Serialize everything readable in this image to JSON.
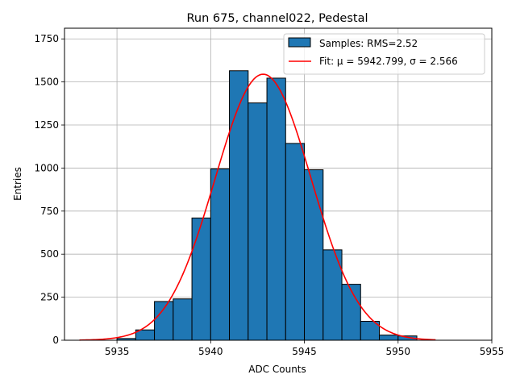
{
  "chart_data": {
    "type": "bar",
    "title": "Run 675, channel022, Pedestal",
    "xlabel": "ADC Counts",
    "ylabel": "Entries",
    "xlim": [
      5932.2,
      5955.0
    ],
    "ylim": [
      0,
      1812
    ],
    "grid": true,
    "legend_position": "top-right",
    "xticks": [
      5935,
      5940,
      5945,
      5950,
      5955
    ],
    "yticks": [
      0,
      250,
      500,
      750,
      1000,
      1250,
      1500,
      1750
    ],
    "bin_width": 1,
    "bin_left_edges": [
      5935,
      5936,
      5937,
      5938,
      5939,
      5940,
      5941,
      5942,
      5943,
      5944,
      5945,
      5946,
      5947,
      5948,
      5949,
      5950
    ],
    "values": [
      10,
      60,
      225,
      240,
      710,
      995,
      1565,
      1378,
      1522,
      1143,
      990,
      525,
      325,
      110,
      30,
      25
    ],
    "series": [
      {
        "name": "Samples: RMS=2.52",
        "kind": "histogram",
        "color": "#1f77b4",
        "edgecolor": "#000000"
      },
      {
        "name": "Fit: μ = 5942.799, σ = 2.566",
        "kind": "gaussian-fit",
        "color": "#ff0000",
        "mu": 5942.799,
        "sigma": 2.566,
        "amplitude": 1545,
        "x_range": [
          5933,
          5952
        ]
      }
    ]
  }
}
